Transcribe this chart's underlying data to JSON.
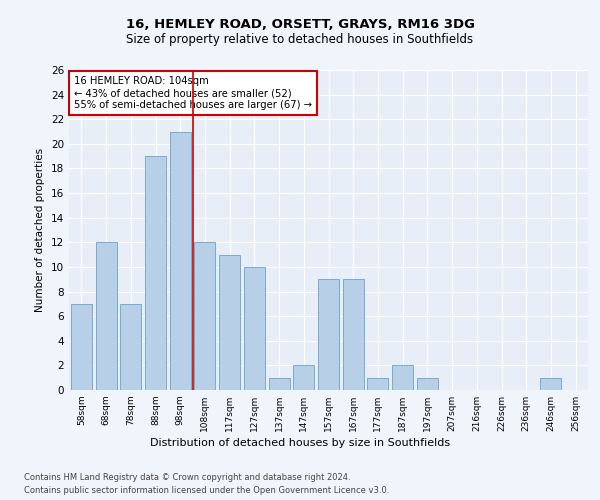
{
  "title1": "16, HEMLEY ROAD, ORSETT, GRAYS, RM16 3DG",
  "title2": "Size of property relative to detached houses in Southfields",
  "xlabel": "Distribution of detached houses by size in Southfields",
  "ylabel": "Number of detached properties",
  "categories": [
    "58sqm",
    "68sqm",
    "78sqm",
    "88sqm",
    "98sqm",
    "108sqm",
    "117sqm",
    "127sqm",
    "137sqm",
    "147sqm",
    "157sqm",
    "167sqm",
    "177sqm",
    "187sqm",
    "197sqm",
    "207sqm",
    "216sqm",
    "226sqm",
    "236sqm",
    "246sqm",
    "256sqm"
  ],
  "values": [
    7,
    12,
    7,
    19,
    21,
    12,
    11,
    10,
    1,
    2,
    9,
    9,
    1,
    2,
    1,
    0,
    0,
    0,
    0,
    1,
    0
  ],
  "bar_color": "#b8cfe8",
  "bar_edge_color": "#7aaad0",
  "annotation_text": "16 HEMLEY ROAD: 104sqm\n← 43% of detached houses are smaller (52)\n55% of semi-detached houses are larger (67) →",
  "annotation_box_color": "#ffffff",
  "annotation_box_edge": "#cc0000",
  "vline_color": "#cc0000",
  "ylim": [
    0,
    26
  ],
  "yticks": [
    0,
    2,
    4,
    6,
    8,
    10,
    12,
    14,
    16,
    18,
    20,
    22,
    24,
    26
  ],
  "background_color": "#e8eef7",
  "fig_background": "#f0f4fb",
  "footer1": "Contains HM Land Registry data © Crown copyright and database right 2024.",
  "footer2": "Contains public sector information licensed under the Open Government Licence v3.0."
}
